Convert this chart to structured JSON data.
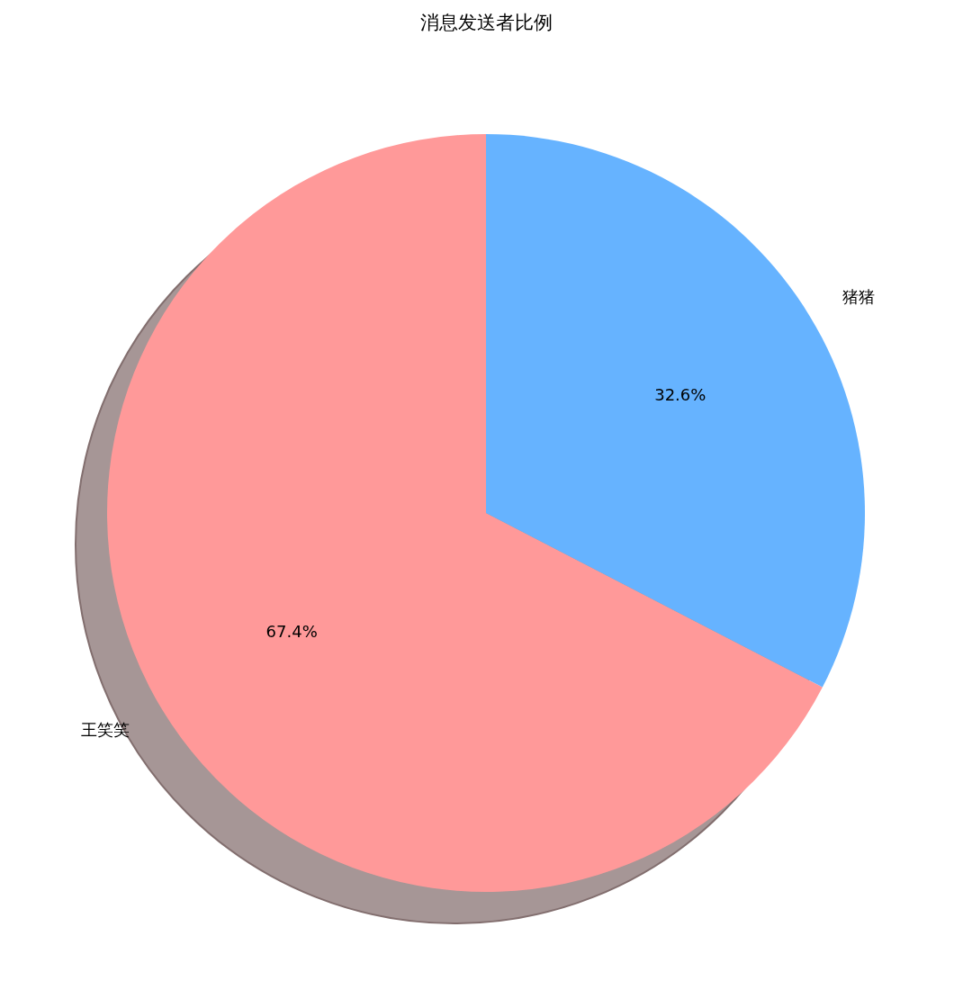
{
  "chart_data": {
    "type": "pie",
    "title": "消息发送者比例",
    "categories": [
      "王笑笑",
      "猪猪"
    ],
    "values": [
      67.4,
      32.6
    ],
    "colors": [
      "#ff9999",
      "#66b3ff"
    ],
    "value_labels": [
      "67.4%",
      "32.6%"
    ]
  }
}
